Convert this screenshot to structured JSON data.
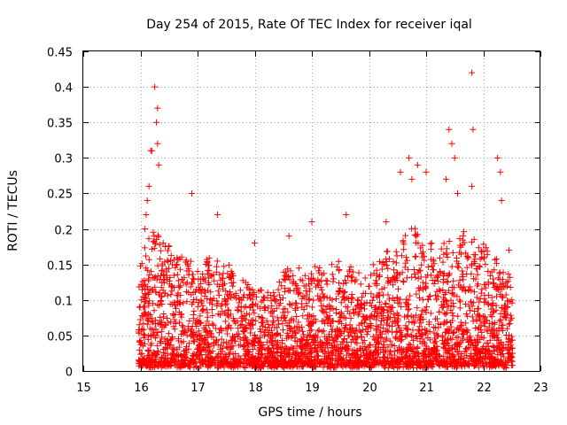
{
  "chart_data": {
    "type": "scatter",
    "title": "Day 254 of 2015, Rate Of TEC Index for receiver iqal",
    "xlabel": "GPS time / hours",
    "ylabel": "ROTI / TECUs",
    "xlim": [
      15,
      23
    ],
    "ylim": [
      0,
      0.45
    ],
    "xticks": [
      "15",
      "16",
      "17",
      "18",
      "19",
      "20",
      "21",
      "22",
      "23"
    ],
    "yticks": [
      "0",
      "0.05",
      "0.1",
      "0.15",
      "0.2",
      "0.25",
      "0.3",
      "0.35",
      "0.4",
      "0.45"
    ],
    "grid": true,
    "marker": "+",
    "color": "#ff0000",
    "series": [
      {
        "name": "ROTI",
        "envelope_note": "dense scatter; points listed as [hour, ROTI]",
        "points": [
          [
            16.05,
            0.12
          ],
          [
            16.08,
            0.2
          ],
          [
            16.1,
            0.22
          ],
          [
            16.12,
            0.24
          ],
          [
            16.15,
            0.26
          ],
          [
            16.18,
            0.31
          ],
          [
            16.2,
            0.31
          ],
          [
            16.25,
            0.4
          ],
          [
            16.28,
            0.35
          ],
          [
            16.3,
            0.37
          ],
          [
            16.3,
            0.32
          ],
          [
            16.32,
            0.29
          ],
          [
            16.9,
            0.25
          ],
          [
            17.35,
            0.22
          ],
          [
            18.0,
            0.18
          ],
          [
            18.6,
            0.19
          ],
          [
            19.0,
            0.21
          ],
          [
            19.6,
            0.22
          ],
          [
            20.3,
            0.21
          ],
          [
            20.55,
            0.28
          ],
          [
            20.7,
            0.3
          ],
          [
            20.75,
            0.27
          ],
          [
            20.85,
            0.29
          ],
          [
            21.0,
            0.28
          ],
          [
            21.35,
            0.27
          ],
          [
            21.4,
            0.34
          ],
          [
            21.45,
            0.32
          ],
          [
            21.5,
            0.3
          ],
          [
            21.55,
            0.25
          ],
          [
            21.8,
            0.42
          ],
          [
            21.82,
            0.34
          ],
          [
            21.8,
            0.26
          ],
          [
            22.25,
            0.3
          ],
          [
            22.3,
            0.28
          ],
          [
            22.32,
            0.24
          ],
          [
            22.45,
            0.17
          ],
          [
            22.5,
            0.1
          ],
          [
            22.5,
            0.02
          ]
        ]
      }
    ],
    "density": {
      "note": "approximate upper envelope of the dense cloud by hour (ROTI units)",
      "bins": [
        [
          16.0,
          0.17
        ],
        [
          16.25,
          0.2
        ],
        [
          16.5,
          0.18
        ],
        [
          16.75,
          0.17
        ],
        [
          17.0,
          0.15
        ],
        [
          17.25,
          0.16
        ],
        [
          17.5,
          0.15
        ],
        [
          17.75,
          0.13
        ],
        [
          18.0,
          0.12
        ],
        [
          18.25,
          0.11
        ],
        [
          18.5,
          0.14
        ],
        [
          18.75,
          0.15
        ],
        [
          19.0,
          0.14
        ],
        [
          19.25,
          0.15
        ],
        [
          19.5,
          0.16
        ],
        [
          19.75,
          0.14
        ],
        [
          20.0,
          0.14
        ],
        [
          20.25,
          0.16
        ],
        [
          20.5,
          0.18
        ],
        [
          20.75,
          0.2
        ],
        [
          21.0,
          0.19
        ],
        [
          21.25,
          0.18
        ],
        [
          21.5,
          0.2
        ],
        [
          21.75,
          0.19
        ],
        [
          22.0,
          0.18
        ],
        [
          22.25,
          0.16
        ],
        [
          22.5,
          0.13
        ]
      ]
    }
  }
}
